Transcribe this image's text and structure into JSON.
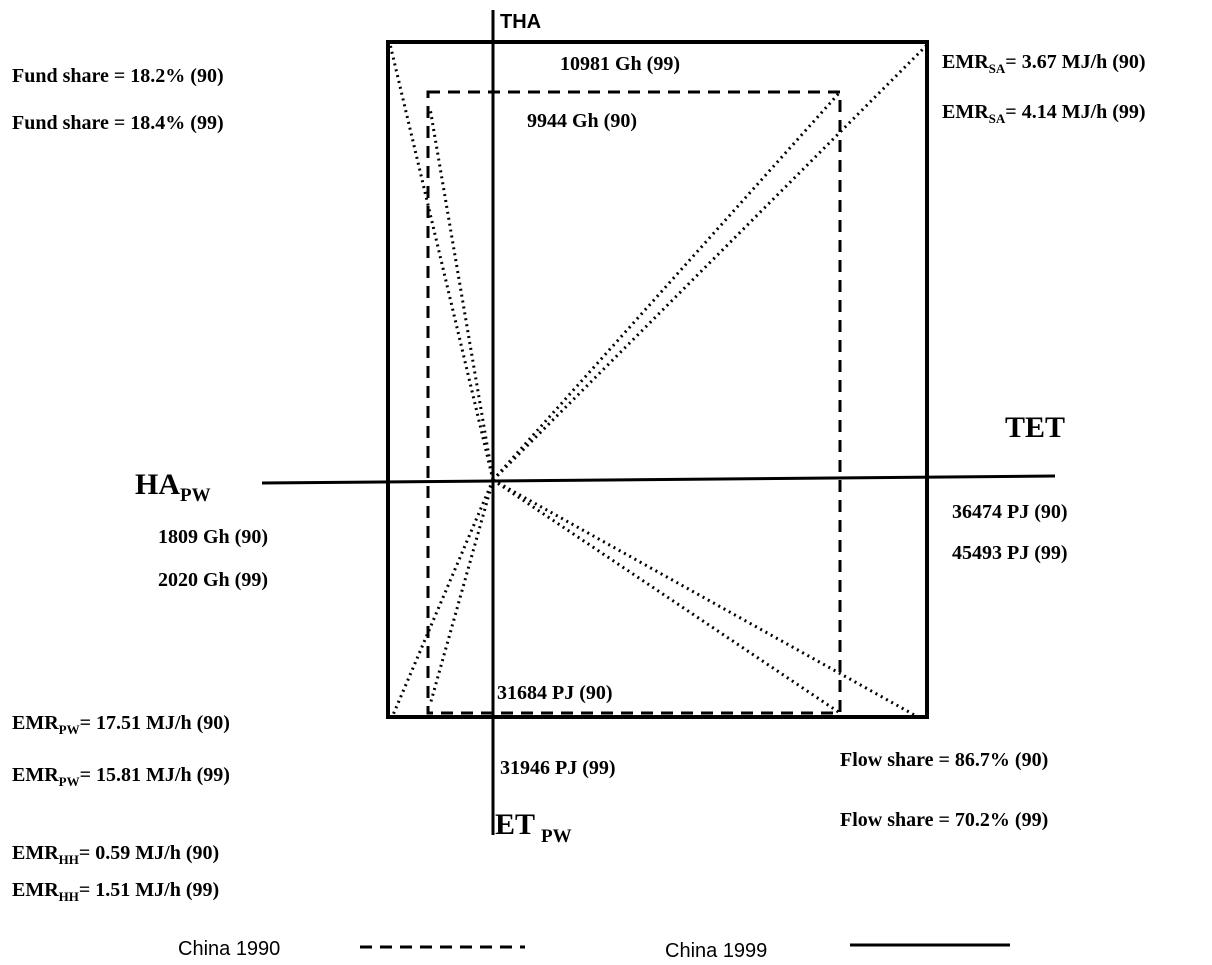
{
  "axes": {
    "top": "THA",
    "right": "TET",
    "left": {
      "main": "HA",
      "sub": "PW"
    },
    "bottom": {
      "main": "ET",
      "sub": "PW"
    }
  },
  "labels": {
    "fund_share_90": "Fund share = 18.2% (90)",
    "fund_share_99": "Fund share = 18.4% (99)",
    "tha_99": "10981  Gh (99)",
    "tha_90": "9944  Gh (90)",
    "emr_sa_90": {
      "main": "EMR",
      "sub": "SA",
      "rest": "= 3.67 MJ/h (90)"
    },
    "emr_sa_99": {
      "main": "EMR",
      "sub": "SA",
      "rest": "= 4.14 MJ/h (99)"
    },
    "ha_pw_90": "1809 Gh (90)",
    "ha_pw_99": "2020 Gh (99)",
    "tet_90": "36474  PJ (90)",
    "tet_99": "45493  PJ (99)",
    "et_pw_90": "31684  PJ (90)",
    "et_pw_99": "31946  PJ (99)",
    "emr_pw_90": {
      "main": "EMR",
      "sub": "PW",
      "rest": "= 17.51  MJ/h (90)"
    },
    "emr_pw_99": {
      "main": "EMR",
      "sub": "PW",
      "rest": "= 15.81  MJ/h (99)"
    },
    "emr_hh_90": {
      "main": "EMR",
      "sub": "HH",
      "rest": "= 0.59  MJ/h (90)"
    },
    "emr_hh_99": {
      "main": "EMR",
      "sub": "HH",
      "rest": "= 1.51  MJ/h (99)"
    },
    "flow_share_90": "Flow share = 86.7% (90)",
    "flow_share_99": "Flow share = 70.2% (99)"
  },
  "legend": {
    "dashed": "China 1990",
    "solid": "China 1999"
  }
}
